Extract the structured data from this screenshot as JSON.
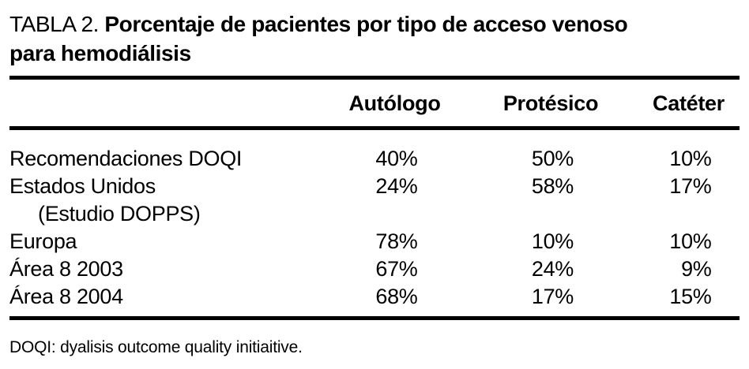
{
  "title": {
    "label": "TABLA 2.",
    "bold_line1": "Porcentaje de pacientes por tipo de acceso venoso",
    "bold_line2": "para hemodiálisis"
  },
  "table": {
    "columns": [
      "Autólogo",
      "Protésico",
      "Catéter"
    ],
    "rows": [
      {
        "name": "Recomendaciones DOQI",
        "sub": "",
        "values": [
          "40%",
          "50%",
          "10%"
        ]
      },
      {
        "name": "Estados Unidos",
        "sub": "(Estudio DOPPS)",
        "values": [
          "24%",
          "58%",
          "17%"
        ]
      },
      {
        "name": "Europa",
        "sub": "",
        "values": [
          "78%",
          "10%",
          "10%"
        ]
      },
      {
        "name": "Área 8 2003",
        "sub": "",
        "values": [
          "67%",
          "24%",
          "9%"
        ]
      },
      {
        "name": "Área 8 2004",
        "sub": "",
        "values": [
          "68%",
          "17%",
          "15%"
        ]
      }
    ]
  },
  "footnote": "DOQI: dyalisis outcome quality initiaitive.",
  "colors": {
    "text": "#000000",
    "background": "#ffffff",
    "rule": "#000000"
  }
}
